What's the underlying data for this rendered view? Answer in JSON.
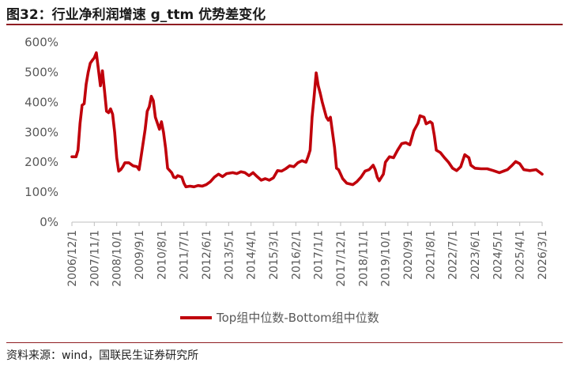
{
  "title": "图32：行业净利润增速 g_ttm 优势差变化",
  "source": "资料来源：wind，国联民生证券研究所",
  "colors": {
    "accent": "#8f1d22",
    "series": "#c0000b",
    "axis_text": "#595959",
    "axis_line": "#bfbfbf"
  },
  "chart_data": {
    "type": "line",
    "title": "",
    "xlabel": "",
    "ylabel": "",
    "x_range": [
      "2006/12/1",
      "2026/3/1"
    ],
    "ylim": [
      0,
      600
    ],
    "y_ticks": [
      0,
      100,
      200,
      300,
      400,
      500,
      600
    ],
    "y_tick_labels": [
      "0%",
      "100%",
      "200%",
      "300%",
      "400%",
      "500%",
      "600%"
    ],
    "x_ticks": [
      "2006/12/1",
      "2007/11/1",
      "2008/10/1",
      "2009/9/1",
      "2010/8/1",
      "2011/7/1",
      "2012/6/1",
      "2013/5/1",
      "2014/4/1",
      "2015/3/1",
      "2016/2/1",
      "2017/1/1",
      "2017/12/1",
      "2018/11/1",
      "2019/10/1",
      "2020/9/1",
      "2021/8/1",
      "2022/7/1",
      "2023/6/1",
      "2024/5/1",
      "2025/4/1",
      "2026/3/1"
    ],
    "grid": false,
    "legend_position": "bottom",
    "series": [
      {
        "name": "Top组中位数-Bottom组中位数",
        "points": [
          [
            "2006/12/1",
            218
          ],
          [
            "2007/2/1",
            218
          ],
          [
            "2007/3/1",
            240
          ],
          [
            "2007/4/1",
            330
          ],
          [
            "2007/5/1",
            390
          ],
          [
            "2007/6/1",
            395
          ],
          [
            "2007/7/1",
            460
          ],
          [
            "2007/8/1",
            500
          ],
          [
            "2007/9/1",
            530
          ],
          [
            "2007/10/1",
            540
          ],
          [
            "2007/11/1",
            548
          ],
          [
            "2007/12/1",
            565
          ],
          [
            "2008/1/1",
            510
          ],
          [
            "2008/2/1",
            455
          ],
          [
            "2008/3/1",
            505
          ],
          [
            "2008/4/1",
            440
          ],
          [
            "2008/5/1",
            370
          ],
          [
            "2008/6/1",
            365
          ],
          [
            "2008/7/1",
            378
          ],
          [
            "2008/8/1",
            360
          ],
          [
            "2008/9/1",
            300
          ],
          [
            "2008/10/1",
            215
          ],
          [
            "2008/11/1",
            170
          ],
          [
            "2008/12/1",
            175
          ],
          [
            "2009/1/1",
            185
          ],
          [
            "2009/2/1",
            198
          ],
          [
            "2009/4/1",
            198
          ],
          [
            "2009/6/1",
            188
          ],
          [
            "2009/8/1",
            185
          ],
          [
            "2009/9/1",
            175
          ],
          [
            "2009/10/1",
            220
          ],
          [
            "2009/12/1",
            310
          ],
          [
            "2010/1/1",
            370
          ],
          [
            "2010/2/1",
            385
          ],
          [
            "2010/3/1",
            420
          ],
          [
            "2010/4/1",
            405
          ],
          [
            "2010/5/1",
            350
          ],
          [
            "2010/7/1",
            310
          ],
          [
            "2010/8/1",
            335
          ],
          [
            "2010/9/1",
            300
          ],
          [
            "2010/10/1",
            248
          ],
          [
            "2010/11/1",
            180
          ],
          [
            "2011/1/1",
            165
          ],
          [
            "2011/2/1",
            150
          ],
          [
            "2011/3/1",
            148
          ],
          [
            "2011/4/1",
            155
          ],
          [
            "2011/6/1",
            150
          ],
          [
            "2011/7/1",
            130
          ],
          [
            "2011/8/1",
            118
          ],
          [
            "2011/10/1",
            120
          ],
          [
            "2011/12/1",
            118
          ],
          [
            "2012/2/1",
            122
          ],
          [
            "2012/4/1",
            120
          ],
          [
            "2012/6/1",
            125
          ],
          [
            "2012/8/1",
            135
          ],
          [
            "2012/10/1",
            150
          ],
          [
            "2012/12/1",
            160
          ],
          [
            "2013/2/1",
            152
          ],
          [
            "2013/4/1",
            162
          ],
          [
            "2013/7/1",
            165
          ],
          [
            "2013/9/1",
            162
          ],
          [
            "2013/11/1",
            168
          ],
          [
            "2014/1/1",
            165
          ],
          [
            "2014/3/1",
            155
          ],
          [
            "2014/5/1",
            165
          ],
          [
            "2014/7/1",
            152
          ],
          [
            "2014/9/1",
            140
          ],
          [
            "2014/11/1",
            145
          ],
          [
            "2015/1/1",
            140
          ],
          [
            "2015/3/1",
            148
          ],
          [
            "2015/5/1",
            172
          ],
          [
            "2015/7/1",
            170
          ],
          [
            "2015/9/1",
            178
          ],
          [
            "2015/11/1",
            188
          ],
          [
            "2016/1/1",
            185
          ],
          [
            "2016/3/1",
            198
          ],
          [
            "2016/5/1",
            205
          ],
          [
            "2016/7/1",
            200
          ],
          [
            "2016/8/1",
            218
          ],
          [
            "2016/9/1",
            240
          ],
          [
            "2016/10/1",
            350
          ],
          [
            "2016/11/1",
            420
          ],
          [
            "2016/12/1",
            498
          ],
          [
            "2017/1/1",
            455
          ],
          [
            "2017/2/1",
            430
          ],
          [
            "2017/3/1",
            400
          ],
          [
            "2017/4/1",
            375
          ],
          [
            "2017/5/1",
            350
          ],
          [
            "2017/6/1",
            340
          ],
          [
            "2017/7/1",
            350
          ],
          [
            "2017/8/1",
            300
          ],
          [
            "2017/9/1",
            250
          ],
          [
            "2017/10/1",
            180
          ],
          [
            "2017/11/1",
            175
          ],
          [
            "2017/12/1",
            160
          ],
          [
            "2018/1/1",
            145
          ],
          [
            "2018/3/1",
            130
          ],
          [
            "2018/6/1",
            125
          ],
          [
            "2018/8/1",
            135
          ],
          [
            "2018/10/1",
            150
          ],
          [
            "2018/12/1",
            170
          ],
          [
            "2019/2/1",
            175
          ],
          [
            "2019/4/1",
            190
          ],
          [
            "2019/5/1",
            175
          ],
          [
            "2019/6/1",
            150
          ],
          [
            "2019/7/1",
            138
          ],
          [
            "2019/9/1",
            160
          ],
          [
            "2019/10/1",
            200
          ],
          [
            "2019/12/1",
            218
          ],
          [
            "2020/2/1",
            215
          ],
          [
            "2020/4/1",
            240
          ],
          [
            "2020/6/1",
            262
          ],
          [
            "2020/8/1",
            265
          ],
          [
            "2020/10/1",
            258
          ],
          [
            "2020/12/1",
            305
          ],
          [
            "2021/2/1",
            330
          ],
          [
            "2021/3/1",
            355
          ],
          [
            "2021/5/1",
            350
          ],
          [
            "2021/6/1",
            328
          ],
          [
            "2021/8/1",
            335
          ],
          [
            "2021/9/1",
            330
          ],
          [
            "2021/10/1",
            290
          ],
          [
            "2021/11/1",
            240
          ],
          [
            "2022/1/1",
            232
          ],
          [
            "2022/3/1",
            215
          ],
          [
            "2022/5/1",
            200
          ],
          [
            "2022/7/1",
            180
          ],
          [
            "2022/9/1",
            172
          ],
          [
            "2022/11/1",
            185
          ],
          [
            "2023/1/1",
            225
          ],
          [
            "2023/3/1",
            215
          ],
          [
            "2023/4/1",
            190
          ],
          [
            "2023/6/1",
            180
          ],
          [
            "2023/9/1",
            178
          ],
          [
            "2023/12/1",
            178
          ],
          [
            "2024/3/1",
            172
          ],
          [
            "2024/6/1",
            165
          ],
          [
            "2024/8/1",
            170
          ],
          [
            "2024/10/1",
            175
          ],
          [
            "2024/12/1",
            188
          ],
          [
            "2025/2/1",
            202
          ],
          [
            "2025/4/1",
            195
          ],
          [
            "2025/6/1",
            175
          ],
          [
            "2025/9/1",
            172
          ],
          [
            "2025/12/1",
            175
          ],
          [
            "2026/3/1",
            160
          ]
        ]
      }
    ]
  }
}
